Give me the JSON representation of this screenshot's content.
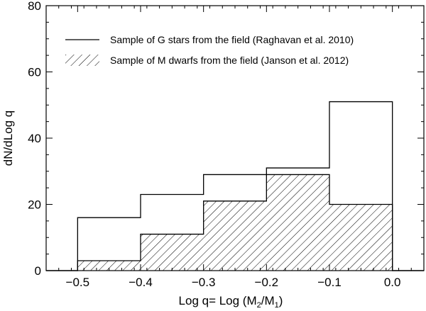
{
  "chart_data": {
    "type": "histogram",
    "title": "",
    "xlabel": "Log q= Log (M2/M1)",
    "ylabel": "dN/dLog q",
    "xlabel_parts": {
      "main": "Log q= Log (M",
      "sub1": "2",
      "mid": "/M",
      "sub2": "1",
      "end": ")"
    },
    "xlim": [
      -0.55,
      0.05
    ],
    "ylim": [
      0,
      80
    ],
    "xticks": [
      -0.5,
      -0.4,
      -0.3,
      -0.2,
      -0.1,
      0.0
    ],
    "xtick_labels": [
      "−0.5",
      "−0.4",
      "−0.3",
      "−0.2",
      "−0.1",
      "0.0"
    ],
    "yticks": [
      0,
      20,
      40,
      60,
      80
    ],
    "ytick_labels": [
      "0",
      "20",
      "40",
      "60",
      "80"
    ],
    "bin_edges": [
      -0.5,
      -0.4,
      -0.3,
      -0.2,
      -0.1,
      0.0
    ],
    "grid": false,
    "legend_position": "top",
    "series": [
      {
        "name": "Sample of G stars from the field (Raghavan et al. 2010)",
        "style": "line",
        "values": [
          16,
          23,
          29,
          31,
          51
        ]
      },
      {
        "name": "Sample of M dwarfs from the field (Janson et al. 2012)",
        "style": "hatched",
        "values": [
          3,
          11,
          21,
          29,
          20
        ]
      }
    ],
    "colors": {
      "line": "#000000",
      "background": "#ffffff"
    }
  }
}
